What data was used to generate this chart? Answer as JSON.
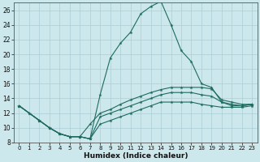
{
  "xlabel": "Humidex (Indice chaleur)",
  "bg_color": "#cce8ec",
  "line_color": "#1e6b5e",
  "grid_color": "#aacdd4",
  "xlim": [
    -0.5,
    23.5
  ],
  "ylim": [
    8,
    27
  ],
  "xticks": [
    0,
    1,
    2,
    3,
    4,
    5,
    6,
    7,
    8,
    9,
    10,
    11,
    12,
    13,
    14,
    15,
    16,
    17,
    18,
    19,
    20,
    21,
    22,
    23
  ],
  "yticks": [
    8,
    10,
    12,
    14,
    16,
    18,
    20,
    22,
    24,
    26
  ],
  "tick_fontsize": 5.0,
  "xlabel_fontsize": 6.5,
  "curves": [
    {
      "x": [
        0,
        1,
        2,
        3,
        4,
        5,
        6,
        7,
        8,
        9,
        10,
        11,
        12,
        13,
        14,
        15,
        16,
        17,
        18,
        19,
        20,
        21,
        22,
        23
      ],
      "y": [
        13,
        12,
        11,
        10,
        9.2,
        8.8,
        8.8,
        8.5,
        14.5,
        19.5,
        21.5,
        23.0,
        25.5,
        26.5,
        27.2,
        24.0,
        20.5,
        19.0,
        16.0,
        15.5,
        13.5,
        13.0,
        13.0,
        13.2
      ]
    },
    {
      "x": [
        0,
        1,
        2,
        3,
        4,
        5,
        6,
        7,
        8,
        9,
        10,
        11,
        12,
        13,
        14,
        15,
        16,
        17,
        18,
        19,
        20,
        21,
        22,
        23
      ],
      "y": [
        13,
        12,
        11,
        10,
        9.2,
        8.8,
        8.8,
        10.5,
        12.0,
        12.5,
        13.2,
        13.8,
        14.3,
        14.8,
        15.2,
        15.5,
        15.5,
        15.5,
        15.5,
        15.3,
        13.8,
        13.5,
        13.2,
        13.2
      ]
    },
    {
      "x": [
        0,
        2,
        3,
        4,
        5,
        6,
        7,
        8,
        9,
        10,
        11,
        12,
        13,
        14,
        15,
        16,
        17,
        18,
        19,
        20,
        21,
        22,
        23
      ],
      "y": [
        13,
        11,
        10,
        9.2,
        8.8,
        8.8,
        8.5,
        11.5,
        12.0,
        12.5,
        13.0,
        13.5,
        14.0,
        14.5,
        14.8,
        14.8,
        14.8,
        14.5,
        14.3,
        13.5,
        13.2,
        13.0,
        13.2
      ]
    },
    {
      "x": [
        0,
        2,
        3,
        4,
        5,
        6,
        7,
        8,
        9,
        10,
        11,
        12,
        13,
        14,
        15,
        16,
        17,
        18,
        19,
        20,
        21,
        22,
        23
      ],
      "y": [
        13,
        11,
        10,
        9.2,
        8.8,
        8.8,
        8.5,
        10.5,
        11.0,
        11.5,
        12.0,
        12.5,
        13.0,
        13.5,
        13.5,
        13.5,
        13.5,
        13.2,
        13.0,
        12.8,
        12.8,
        12.8,
        13.0
      ]
    }
  ]
}
